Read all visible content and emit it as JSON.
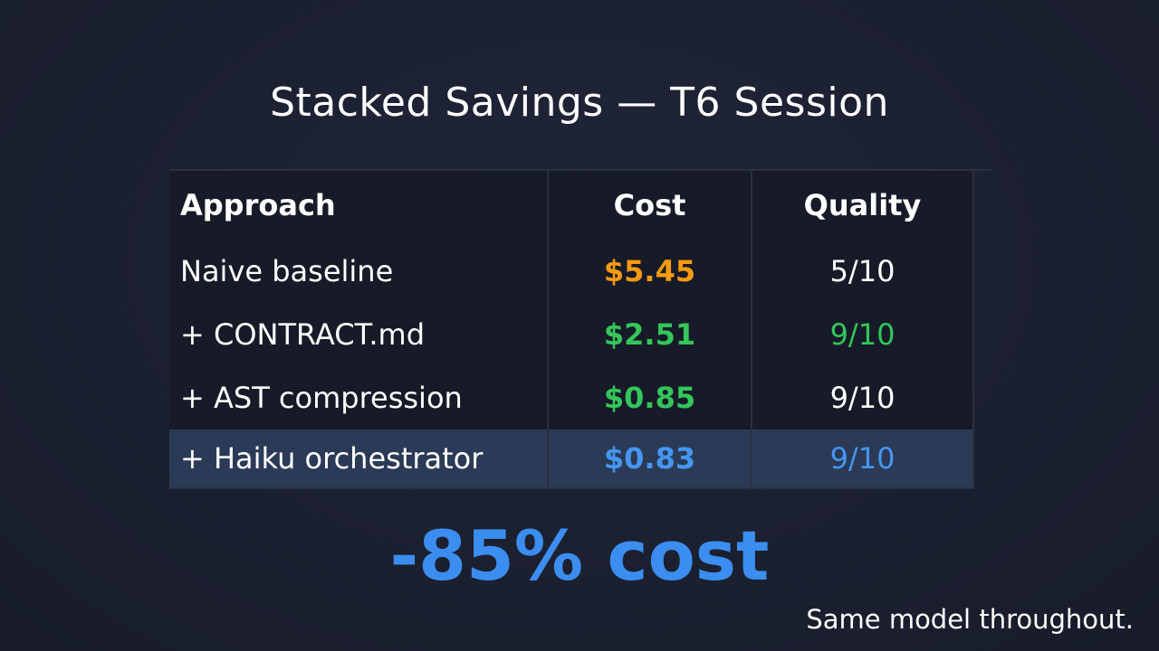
{
  "title": "Stacked Savings — T6 Session",
  "table": {
    "headers": [
      "Approach",
      "Cost",
      "Quality"
    ],
    "rows": [
      {
        "approach": "Naive baseline",
        "cost": "$5.45",
        "quality": "5/10",
        "cost_color": "#f59a12",
        "quality_color": "#ffffff"
      },
      {
        "approach": "+ CONTRACT.md",
        "cost": "$2.51",
        "quality": "9/10",
        "cost_color": "#34c65a",
        "quality_color": "#34c65a"
      },
      {
        "approach": "+ AST compression",
        "cost": "$0.85",
        "quality": "9/10",
        "cost_color": "#34c65a",
        "quality_color": "#ffffff"
      },
      {
        "approach": "+ Haiku orchestrator",
        "cost": "$0.83",
        "quality": "9/10",
        "cost_color": "#4596f0",
        "quality_color": "#4596f0",
        "highlighted": true
      }
    ]
  },
  "headline": "-85% cost",
  "footnote": "Same model throughout.",
  "colors": {
    "accent": "#3b8eef",
    "highlight_row": "#2b3a56",
    "background": "#1b2030"
  }
}
